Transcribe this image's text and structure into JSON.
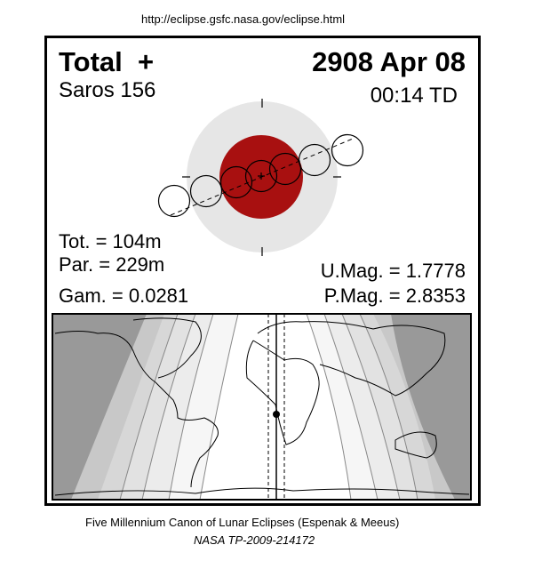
{
  "header_url": "http://eclipse.gsfc.nasa.gov/eclipse.html",
  "eclipse": {
    "type": "Total  +",
    "saros": "Saros 156",
    "date": "2908 Apr 08",
    "time": "00:14 TD",
    "totality": "Tot. = 104m",
    "partial": "Par. = 229m",
    "gamma": "Gam. = 0.0281",
    "umbral_mag": "U.Mag. = 1.7778",
    "penumbral_mag": "P.Mag. = 2.8353"
  },
  "colors": {
    "umbra": "#a81010",
    "penumbra": "#e6e6e6",
    "night": "#999999"
  },
  "footer": {
    "title": "Five Millennium Canon of Lunar Eclipses (Espenak & Meeus)",
    "reference": "NASA TP-2009-214172"
  }
}
